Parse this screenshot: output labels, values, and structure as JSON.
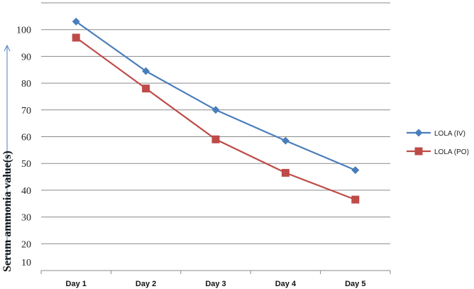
{
  "chart_data": {
    "type": "line",
    "categories": [
      "Day 1",
      "Day 2",
      "Day 3",
      "Day 4",
      "Day 5"
    ],
    "series": [
      {
        "name": "LOLA (IV)",
        "color": "#4a7ebb",
        "marker": "diamond",
        "values": [
          103,
          84.5,
          70,
          58.5,
          47.5
        ]
      },
      {
        "name": "LOLA (PO)",
        "color": "#be4b48",
        "marker": "square",
        "values": [
          97,
          78,
          59,
          46.5,
          36.5
        ]
      }
    ],
    "ylabel": "Serum ammonia value(s)",
    "yticks": [
      10,
      20,
      30,
      40,
      50,
      60,
      70,
      80,
      90,
      100
    ],
    "ylim": [
      10,
      110
    ],
    "grid": true,
    "legend": "right"
  }
}
